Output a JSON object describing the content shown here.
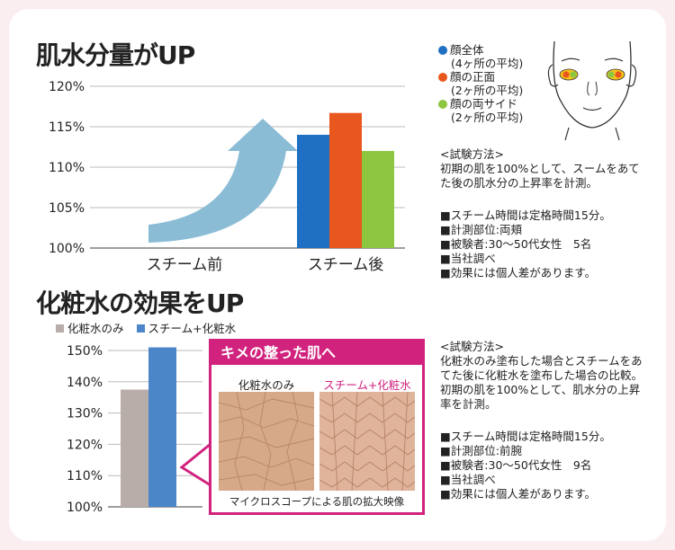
{
  "colors": {
    "blue": "#1f6fc2",
    "orange": "#e8571e",
    "green": "#8dc63f",
    "gray": "#b8ada8",
    "lightblue": "#4a86c8",
    "magenta": "#d1237e",
    "arrow": "#8bbcd6"
  },
  "top": {
    "title": "肌水分量がUP",
    "legend": [
      {
        "line1": "顔全体",
        "line2": "(4ヶ所の平均)",
        "color": "#1f6fc2"
      },
      {
        "line1": "顔の正面",
        "line2": "(2ヶ所の平均)",
        "color": "#e8571e"
      },
      {
        "line1": "顔の両サイド",
        "line2": "(2ヶ所の平均)",
        "color": "#8dc63f"
      }
    ],
    "method": "<試験方法>\n初期の肌を100%として、スームをあてた後の肌水分の上昇率を計測。",
    "notes": "■スチーム時間は定格時間15分。\n■計測部位:両頬\n■被験者:30〜50代女性　5名\n■当社調べ\n■効果には個人差があります。"
  },
  "bottom": {
    "title": "化粧水の効果をUP",
    "legend": [
      {
        "label": "化粧水のみ",
        "color": "#b8ada8"
      },
      {
        "label": "スチーム+化粧水",
        "color": "#4a86c8"
      }
    ],
    "micro": {
      "header": "キメの整った肌へ",
      "left_label": "化粧水のみ",
      "right_label": "スチーム+化粧水",
      "caption": "マイクロスコープによる肌の拡大映像"
    },
    "method": "<試験方法>\n化粧水のみ塗布した場合とスチームをあてた後に化粧水を塗布した場合の比較。\n初期の肌を100%として、肌水分の上昇率を計測。",
    "notes": "■スチーム時間は定格時間15分。\n■計測部位:前腕\n■被験者:30〜50代女性　9名\n■当社調べ\n■効果には個人差があります。"
  },
  "chart_data": [
    {
      "type": "bar",
      "title": "肌水分量がUP",
      "categories": [
        "スチーム前",
        "スチーム後"
      ],
      "series": [
        {
          "name": "顔全体(4ヶ所の平均)",
          "values": [
            null,
            114
          ]
        },
        {
          "name": "顔の正面(2ヶ所の平均)",
          "values": [
            null,
            116.7
          ]
        },
        {
          "name": "顔の両サイド(2ヶ所の平均)",
          "values": [
            null,
            112
          ]
        }
      ],
      "ylim": [
        100,
        120
      ],
      "yticks": [
        "100%",
        "105%",
        "110%",
        "115%",
        "120%"
      ],
      "grid": true,
      "legend": "right"
    },
    {
      "type": "bar",
      "title": "化粧水の効果をUP",
      "categories": [
        ""
      ],
      "series": [
        {
          "name": "化粧水のみ",
          "values": [
            137.5
          ]
        },
        {
          "name": "スチーム+化粧水",
          "values": [
            151
          ]
        }
      ],
      "ylim": [
        100,
        150
      ],
      "yticks": [
        "100%",
        "110%",
        "120%",
        "130%",
        "140%",
        "150%"
      ],
      "grid": true,
      "legend": "top-left"
    }
  ]
}
